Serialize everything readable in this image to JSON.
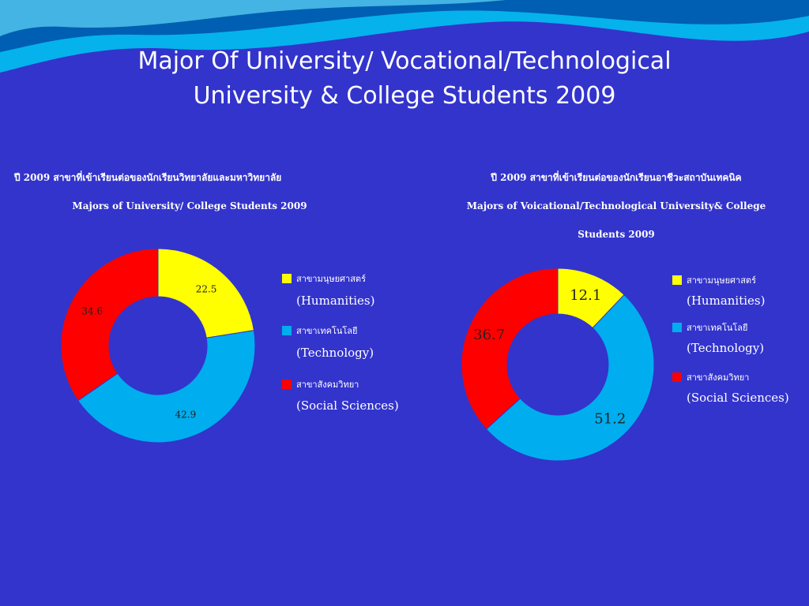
{
  "slide": {
    "title_line1": "Major Of University/  Vocational/Technological",
    "title_line2": "University & College Students 2009"
  },
  "colors": {
    "background": "#3334cc",
    "humanities": "#ffff00",
    "technology": "#00adef",
    "social_sciences": "#ff0000",
    "wave_light": "#00c0f0",
    "wave_dark": "#0050a8"
  },
  "chart_data": [
    {
      "type": "pie",
      "style": "donut",
      "title_th": "ปี 2009  สาขาที่เข้าเรียนต่อของนักเรียนวิทยาลัยและมหาวิทยาลัย",
      "title": "Majors of University/ College Students 2009",
      "categories": [
        "Humanities",
        "Technology",
        "Social Sciences"
      ],
      "values": [
        22.5,
        42.9,
        34.6
      ],
      "data_labels": [
        "22.5",
        "42.9",
        "34.6"
      ],
      "legend": [
        {
          "th": "สาขามนุษยศาสตร์",
          "en": "(Humanities)"
        },
        {
          "th": "สาขาเทคโนโลยี",
          "en": "(Technology)"
        },
        {
          "th": "สาขาสังคมวิทยา",
          "en": "(Social Sciences)"
        }
      ],
      "legend_position": "right"
    },
    {
      "type": "pie",
      "style": "donut",
      "title_th": "ปี 2009  สาขาที่เข้าเรียนต่อของนักเรียนอาชีวะสถาบันเทคนิค",
      "title_line1": "Majors of Voicational/Technological University& College",
      "title_line2": "Students 2009",
      "categories": [
        "Humanities",
        "Technology",
        "Social Sciences"
      ],
      "values": [
        12.1,
        51.2,
        36.7
      ],
      "data_labels": [
        "12.1",
        "51.2",
        "36.7"
      ],
      "legend": [
        {
          "th": "สาขามนุษยศาสตร์",
          "en": "(Humanities)"
        },
        {
          "th": "สาขาเทคโนโลยี",
          "en": "(Technology)"
        },
        {
          "th": "สาขาสังคมวิทยา",
          "en": "(Social Sciences)"
        }
      ],
      "legend_position": "right"
    }
  ]
}
